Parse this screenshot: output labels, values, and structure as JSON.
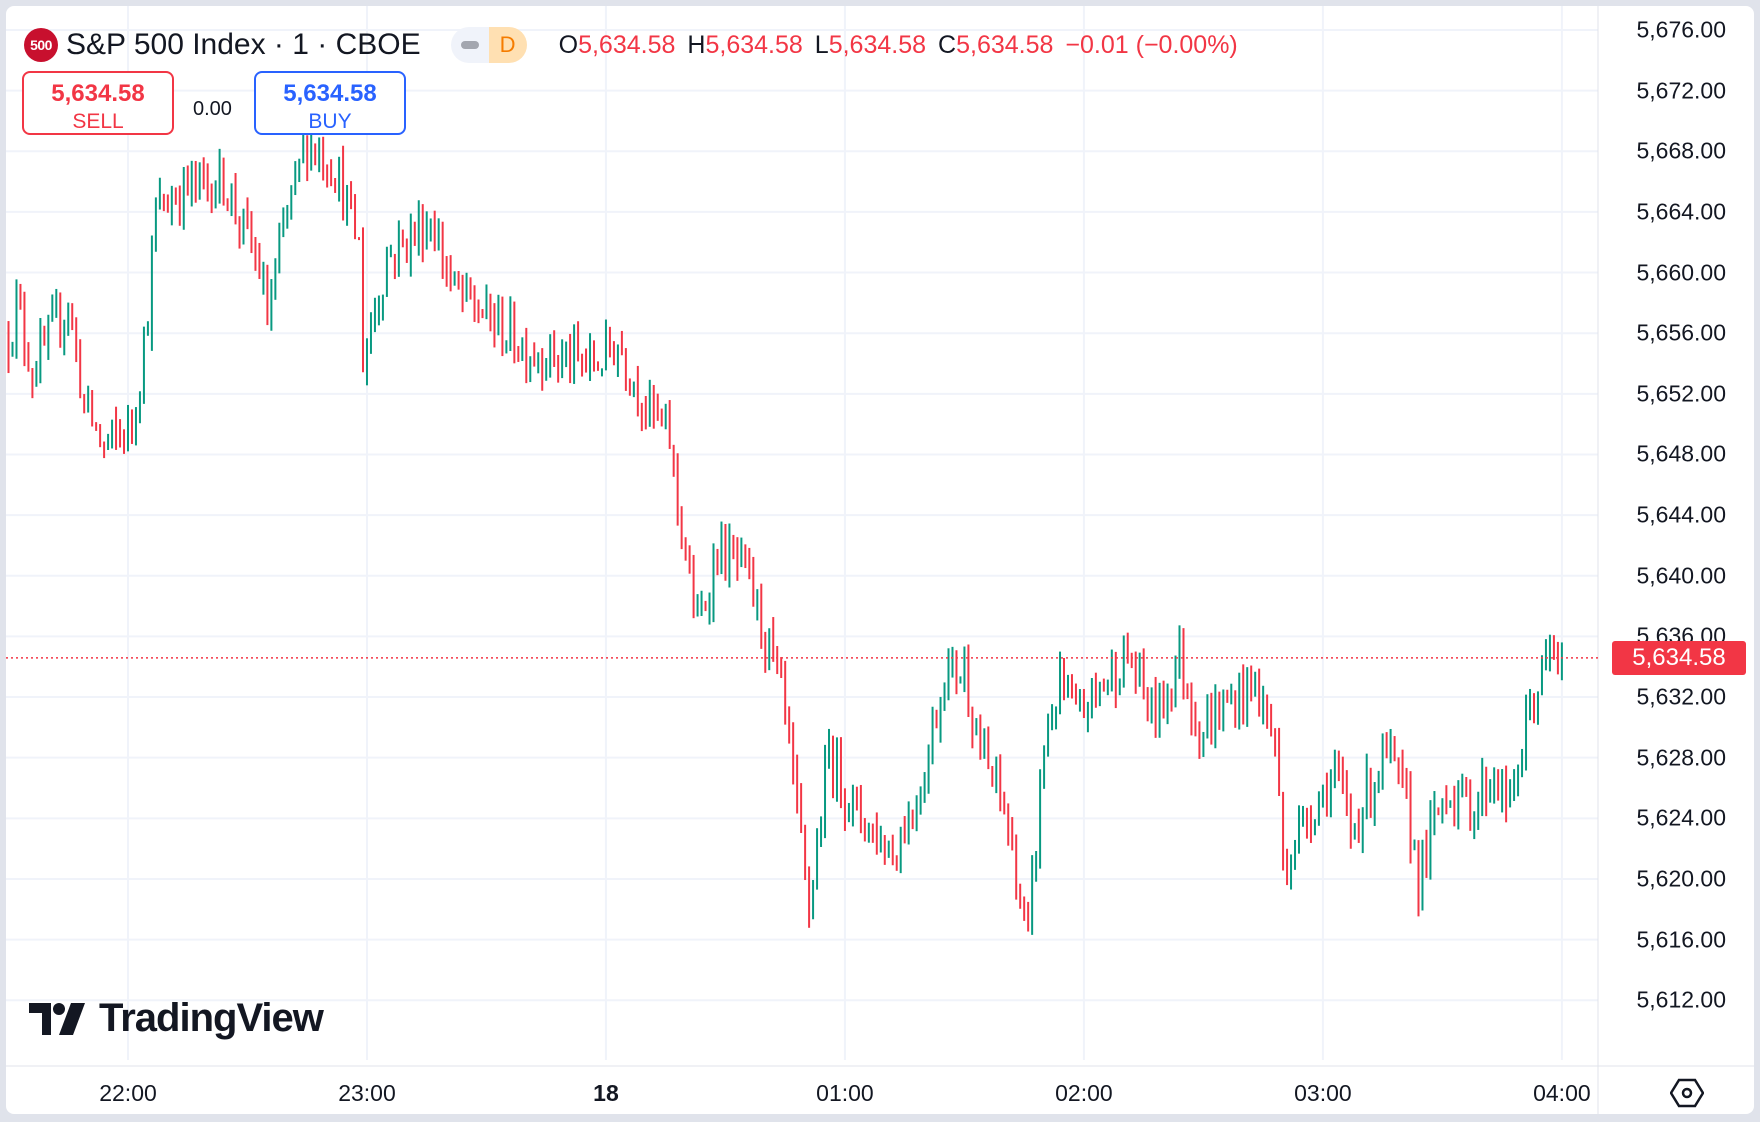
{
  "header": {
    "symbol_badge": "500",
    "title": "S&P 500 Index · 1 · CBOE",
    "market_status_letter": "D",
    "ohlc": [
      {
        "key": "O",
        "value": "5,634.58"
      },
      {
        "key": "H",
        "value": "5,634.58"
      },
      {
        "key": "L",
        "value": "5,634.58"
      },
      {
        "key": "C",
        "value": "5,634.58"
      }
    ],
    "change": "−0.01 (−0.00%)"
  },
  "trade": {
    "sell_price": "5,634.58",
    "sell_label": "SELL",
    "spread": "0.00",
    "buy_price": "5,634.58",
    "buy_label": "BUY"
  },
  "branding": {
    "logo_text": "TradingView"
  },
  "colors": {
    "up": "#089981",
    "down": "#f23645",
    "buy": "#2962ff",
    "grid": "#f0f3fa"
  },
  "icons": {
    "settings": "gear-hexagon-icon",
    "market_status": "dot-icon"
  },
  "chart_data": {
    "type": "bar",
    "interval": "1 minute",
    "last_price_label": "5,634.58",
    "last_price": 5634.58,
    "ylim": [
      5609,
      5678
    ],
    "y_ticks": [
      "5,676.00",
      "5,672.00",
      "5,668.00",
      "5,664.00",
      "5,660.00",
      "5,656.00",
      "5,652.00",
      "5,648.00",
      "5,644.00",
      "5,640.00",
      "5,636.00",
      "5,632.00",
      "5,628.00",
      "5,624.00",
      "5,620.00",
      "5,616.00",
      "5,612.00"
    ],
    "x_ticks": [
      {
        "label": "22:00",
        "time": "22:00"
      },
      {
        "label": "23:00",
        "time": "23:00"
      },
      {
        "label": "18",
        "time": "24:00",
        "bold": true
      },
      {
        "label": "01:00",
        "time": "25:00"
      },
      {
        "label": "02:00",
        "time": "26:00"
      },
      {
        "label": "03:00",
        "time": "27:00"
      },
      {
        "label": "04:00",
        "time": "28:00"
      }
    ],
    "grid": true,
    "approx_price_path": [
      [
        "21:30",
        5655.8
      ],
      [
        "21:32",
        5658
      ],
      [
        "21:36",
        5653.5
      ],
      [
        "21:45",
        5658
      ],
      [
        "21:49",
        5651.3
      ],
      [
        "21:54",
        5648.4
      ],
      [
        "22:01",
        5649.9
      ],
      [
        "22:05",
        5657.3
      ],
      [
        "22:07",
        5664
      ],
      [
        "22:13",
        5665.4
      ],
      [
        "22:24",
        5666.1
      ],
      [
        "22:33",
        5660.2
      ],
      [
        "22:35",
        5657
      ],
      [
        "22:40",
        5664
      ],
      [
        "22:45",
        5668.7
      ],
      [
        "22:52",
        5667
      ],
      [
        "22:58",
        5661.7
      ],
      [
        "22:59",
        5654.3
      ],
      [
        "23:05",
        5661
      ],
      [
        "23:16",
        5663.5
      ],
      [
        "23:22",
        5658.7
      ],
      [
        "23:29",
        5657.3
      ],
      [
        "23:40",
        5655
      ],
      [
        "23:49",
        5654.3
      ],
      [
        "23:57",
        5653.9
      ],
      [
        "00:03",
        5655.4
      ],
      [
        "00:10",
        5651.3
      ],
      [
        "00:16",
        5649
      ],
      [
        "00:18",
        5644.7
      ],
      [
        "00:23",
        5636.5
      ],
      [
        "00:28",
        5641.7
      ],
      [
        "00:35",
        5640.2
      ],
      [
        "00:42",
        5634.3
      ],
      [
        "00:45",
        5630.6
      ],
      [
        "00:48",
        5624
      ],
      [
        "00:51",
        5618
      ],
      [
        "00:56",
        5628.4
      ],
      [
        "01:02",
        5624.7
      ],
      [
        "01:12",
        5621.7
      ],
      [
        "01:19",
        5626.1
      ],
      [
        "01:25",
        5633.6
      ],
      [
        "01:30",
        5633.9
      ],
      [
        "01:34",
        5628.4
      ],
      [
        "01:40",
        5624.7
      ],
      [
        "01:46",
        5615.8
      ],
      [
        "01:50",
        5629.1
      ],
      [
        "01:54",
        5632.8
      ],
      [
        "01:58",
        5630.6
      ],
      [
        "02:07",
        5633.6
      ],
      [
        "02:11",
        5634.7
      ],
      [
        "02:18",
        5630.6
      ],
      [
        "02:24",
        5634.7
      ],
      [
        "02:29",
        5629.8
      ],
      [
        "02:35",
        5631.3
      ],
      [
        "02:43",
        5632.8
      ],
      [
        "02:48",
        5629.1
      ],
      [
        "02:50",
        5620.9
      ],
      [
        "02:57",
        5624.7
      ],
      [
        "03:03",
        5626.9
      ],
      [
        "03:07",
        5623.2
      ],
      [
        "03:16",
        5628.4
      ],
      [
        "03:21",
        5624.7
      ],
      [
        "03:24",
        5620.2
      ],
      [
        "03:31",
        5626.1
      ],
      [
        "03:37",
        5624.7
      ],
      [
        "03:43",
        5626.9
      ],
      [
        "03:47",
        5624.7
      ],
      [
        "03:52",
        5631.3
      ],
      [
        "03:57",
        5634.7
      ],
      [
        "04:00",
        5634.58
      ]
    ]
  }
}
